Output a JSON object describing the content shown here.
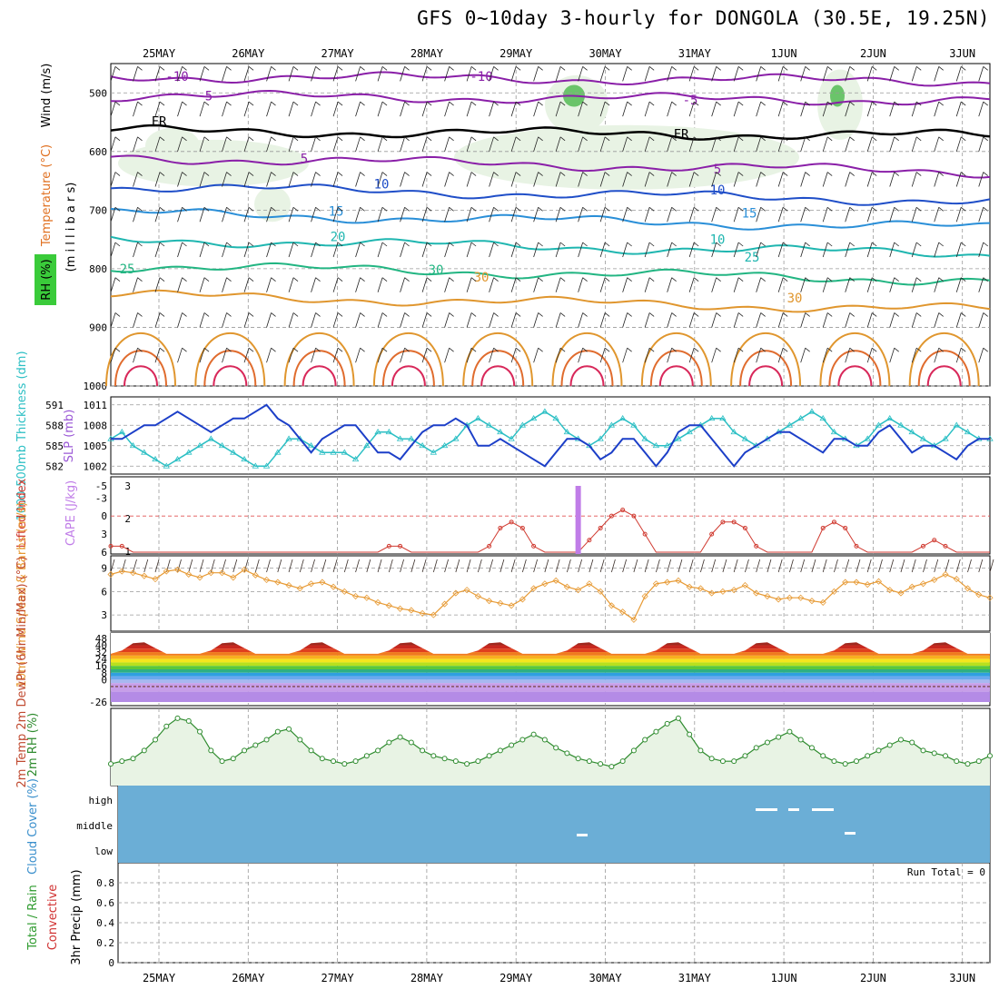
{
  "title": "GFS 0~10day 3-hourly for DONGOLA (30.5E, 19.25N)",
  "colors": {
    "grid": "#999999",
    "slp": "#1c3fc8",
    "thickness": "#2bbfc4",
    "lifted": "#d03a30",
    "cape": "#c07de8",
    "wind10m": "#e79a34",
    "rh2m": "#2e8b2e",
    "cloud": "#6baed6",
    "green_fill": "#e8f3e4"
  },
  "chart_data": {
    "type": "line",
    "dates": [
      "25MAY",
      "26MAY",
      "27MAY",
      "28MAY",
      "29MAY",
      "30MAY",
      "31MAY",
      "1JUN",
      "2JUN",
      "3JUN"
    ],
    "steps": 80,
    "panels": {
      "profile": {
        "ylabel_parts": [
          "Wind (m/s)",
          "Temperature (°C)",
          "RH (%)"
        ],
        "ylabel_main": "(m i l l i b a r s)",
        "yticks": [
          "500",
          "600",
          "700",
          "800",
          "900",
          "1000"
        ],
        "ylim": [
          450,
          1000
        ],
        "isotherms": [
          {
            "label": "-10",
            "level": 472,
            "color": "#8a1fa8"
          },
          {
            "label": "-5",
            "level": 505,
            "color": "#8a1fa8"
          },
          {
            "label": "FR",
            "level": 565,
            "color": "#000000"
          },
          {
            "label": "-5",
            "level": 610,
            "color": "#8a1fa8"
          },
          {
            "label": "10",
            "level": 660,
            "color": "#1f4ec8"
          },
          {
            "label": "15",
            "level": 705,
            "color": "#2a8fd8"
          },
          {
            "label": "20",
            "level": 750,
            "color": "#1fb6b0"
          },
          {
            "label": "25",
            "level": 795,
            "color": "#22b582"
          },
          {
            "label": "30",
            "level": 845,
            "color": "#e0962e"
          }
        ],
        "labels": [
          "-10",
          "5",
          "FR",
          "5",
          "10",
          "15",
          "20",
          "25",
          "30",
          "-10",
          "-5",
          "FR",
          "5",
          "10",
          "15",
          "25",
          "30",
          "30",
          "10"
        ]
      },
      "slp_thickness": {
        "ylabel": "1000-500mb Thickness (dm)",
        "ylabel2": "SLP (mb)",
        "left_ticks": [
          "591",
          "588",
          "585",
          "582"
        ],
        "right_ticks": [
          "1011",
          "1008",
          "1005",
          "1002"
        ],
        "slp": [
          1006,
          1006,
          1007,
          1008,
          1008,
          1009,
          1010,
          1009,
          1008,
          1007,
          1008,
          1009,
          1009,
          1010,
          1011,
          1009,
          1008,
          1006,
          1004,
          1006,
          1007,
          1008,
          1008,
          1006,
          1004,
          1004,
          1003,
          1005,
          1007,
          1008,
          1008,
          1009,
          1008,
          1005,
          1005,
          1006,
          1005,
          1004,
          1003,
          1002,
          1004,
          1006,
          1006,
          1005,
          1003,
          1004,
          1006,
          1006,
          1004,
          1002,
          1004,
          1007,
          1008,
          1008,
          1006,
          1004,
          1002,
          1004,
          1005,
          1006,
          1007,
          1007,
          1006,
          1005,
          1004,
          1006,
          1006,
          1005,
          1005,
          1007,
          1008,
          1006,
          1004,
          1005,
          1005,
          1004,
          1003,
          1005,
          1006,
          1006
        ],
        "thickness": [
          586,
          587,
          585,
          584,
          583,
          582,
          583,
          584,
          585,
          586,
          585,
          584,
          583,
          582,
          582,
          584,
          586,
          586,
          585,
          584,
          584,
          584,
          583,
          585,
          587,
          587,
          586,
          586,
          585,
          584,
          585,
          586,
          588,
          589,
          588,
          587,
          586,
          588,
          589,
          590,
          589,
          587,
          586,
          585,
          586,
          588,
          589,
          588,
          586,
          585,
          585,
          586,
          587,
          588,
          589,
          589,
          587,
          586,
          585,
          586,
          587,
          588,
          589,
          590,
          589,
          587,
          586,
          585,
          586,
          588,
          589,
          588,
          587,
          586,
          585,
          586,
          588,
          587,
          586,
          586
        ]
      },
      "lifted_cape": {
        "ylabel": "Lifted Index",
        "ylabel2": "CAPE (J/kg)",
        "left_ticks": [
          "-5",
          "-3",
          "0",
          "3",
          "6"
        ],
        "right_ticks": [
          "3",
          "2",
          "1"
        ],
        "lifted": [
          5,
          5,
          6,
          6,
          6,
          6,
          6,
          6,
          6,
          6,
          6,
          6,
          6,
          6,
          6,
          6,
          6,
          6,
          6,
          6,
          6,
          6,
          6,
          6,
          6,
          5,
          5,
          6,
          6,
          6,
          6,
          6,
          6,
          6,
          5,
          2,
          1,
          2,
          5,
          6,
          6,
          6,
          6,
          4,
          2,
          0,
          -1,
          0,
          3,
          6,
          6,
          6,
          6,
          6,
          3,
          1,
          1,
          2,
          5,
          6,
          6,
          6,
          6,
          6,
          2,
          1,
          2,
          5,
          6,
          6,
          6,
          6,
          6,
          5,
          4,
          5,
          6,
          6,
          6,
          6
        ],
        "cape_index": 42,
        "cape_value": 3
      },
      "wind10m": {
        "ylabel": "10m Wind Speed & Barbs (m/s)",
        "yticks": [
          "9",
          "6",
          "3"
        ],
        "values": [
          8.2,
          8.6,
          8.4,
          8,
          7.6,
          8.6,
          8.8,
          8.2,
          7.8,
          8.4,
          8.4,
          7.8,
          8.8,
          8.1,
          7.5,
          7.2,
          6.8,
          6.4,
          7,
          7.2,
          6.6,
          6,
          5.4,
          5.2,
          4.6,
          4.2,
          3.8,
          3.6,
          3.2,
          3,
          4.4,
          5.8,
          6.2,
          5.4,
          4.8,
          4.5,
          4.2,
          5,
          6.4,
          7,
          7.4,
          6.6,
          6.2,
          7,
          6,
          4.2,
          3.4,
          2.4,
          5.4,
          7,
          7.2,
          7.4,
          6.6,
          6.4,
          5.8,
          6,
          6.2,
          6.8,
          5.8,
          5.4,
          5,
          5.2,
          5.2,
          4.8,
          4.6,
          6,
          7.2,
          7.2,
          6.9,
          7.3,
          6.2,
          5.8,
          6.6,
          7,
          7.5,
          8.2,
          7.6,
          6.4,
          5.6,
          5.2
        ]
      },
      "temp2m": {
        "ylabel": "2m Temp 2m DewPt (6hr Min/Max) (°C)",
        "yticks": [
          "48",
          "40",
          "32",
          "24",
          "16",
          "8",
          "0",
          "-26"
        ],
        "tmax": 44,
        "tmin": 30
      },
      "rh2m": {
        "ylabel": "2m RH (%)",
        "values": [
          3,
          4,
          5,
          8,
          12,
          17,
          20,
          19,
          15,
          8,
          4,
          5,
          8,
          10,
          12,
          15,
          16,
          12,
          8,
          5,
          4,
          3,
          4,
          6,
          8,
          11,
          13,
          11,
          8,
          6,
          5,
          4,
          3,
          4,
          6,
          8,
          10,
          12,
          14,
          12,
          9,
          7,
          5,
          4,
          3,
          2,
          4,
          8,
          12,
          15,
          18,
          20,
          14,
          8,
          5,
          4,
          4,
          6,
          9,
          11,
          13,
          15,
          12,
          9,
          6,
          4,
          3,
          4,
          6,
          8,
          10,
          12,
          11,
          8,
          7,
          6,
          4,
          3,
          4,
          6
        ]
      },
      "cloud": {
        "ylabel": "Cloud Cover (%)",
        "levels": [
          "high",
          "middle",
          "low"
        ]
      },
      "precip": {
        "ylabel": "3hr Precip (mm)",
        "ylabel2": "Total / Rain",
        "ylabel3": "Convective",
        "yticks": [
          "0.8",
          "0.6",
          "0.4",
          "0.2",
          "0"
        ],
        "run_total": "Run Total = 0"
      }
    }
  }
}
